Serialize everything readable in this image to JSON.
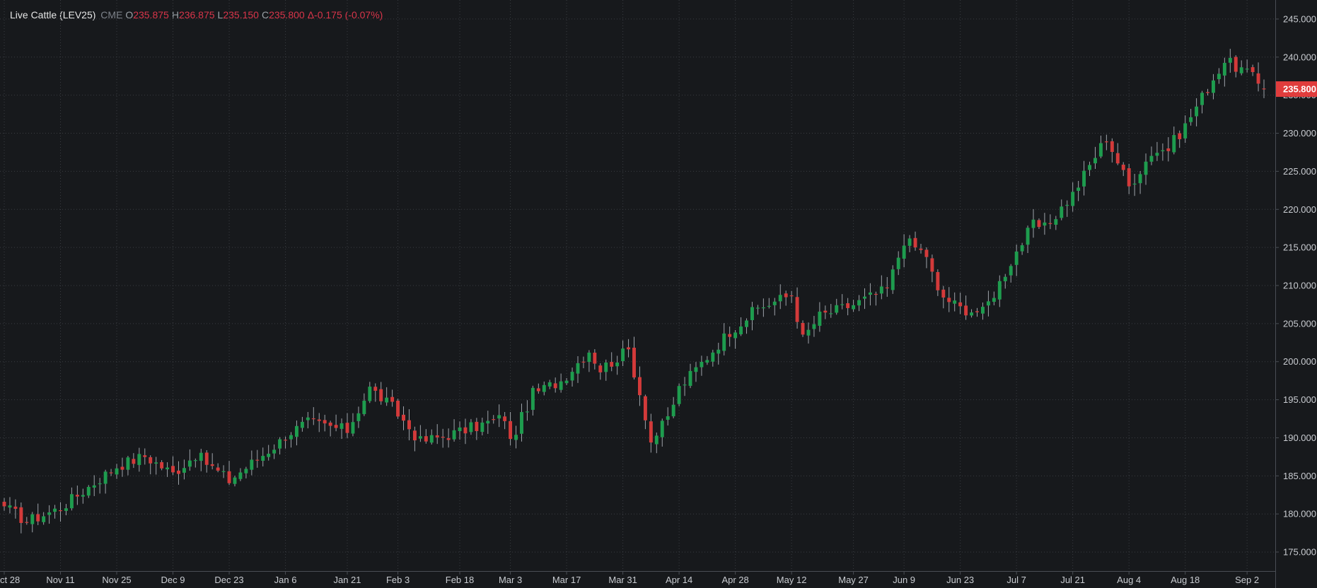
{
  "legend": {
    "symbol": "Live Cattle (LEV25)",
    "exchange": "CME",
    "open_key": "O",
    "open": "235.875",
    "high_key": "H",
    "high": "236.875",
    "low_key": "L",
    "low": "235.150",
    "close_key": "C",
    "close": "235.800",
    "change": "Δ-0.175 (-0.07%)"
  },
  "colors": {
    "background": "#17191c",
    "up": "#1e9c4e",
    "down": "#d33a3a",
    "grid": "#3a3d42",
    "last_price_bg": "#e03c3c"
  },
  "chart_data": {
    "type": "candlestick",
    "grid": true,
    "y_axis": {
      "position": "right",
      "range": [
        172.5,
        247.5
      ],
      "ticks": [
        "175.000",
        "180.000",
        "185.000",
        "190.000",
        "195.000",
        "200.000",
        "205.000",
        "210.000",
        "215.000",
        "220.000",
        "225.000",
        "230.000",
        "235.000",
        "240.000",
        "245.000"
      ]
    },
    "x_axis": {
      "labels": [
        "ct 28",
        "Nov 11",
        "Nov 25",
        "Dec 9",
        "Dec 23",
        "Jan 6",
        "Jan 21",
        "Feb 3",
        "Feb 18",
        "Mar 3",
        "Mar 17",
        "Mar 31",
        "Apr 14",
        "Apr 28",
        "May 12",
        "May 27",
        "Jun 9",
        "Jun 23",
        "Jul 7",
        "Jul 21",
        "Aug 4",
        "Aug 18",
        "Sep 2"
      ]
    },
    "last_price": "235.800",
    "anchors": [
      {
        "d": "Oct 28",
        "c": 181.0
      },
      {
        "d": "Nov 1",
        "c": 179.0
      },
      {
        "d": "Nov 11",
        "c": 180.8
      },
      {
        "d": "Nov 25",
        "c": 186.3
      },
      {
        "d": "Dec 2",
        "c": 187.6
      },
      {
        "d": "Dec 9",
        "c": 185.3
      },
      {
        "d": "Dec 13",
        "c": 187.8
      },
      {
        "d": "Dec 23",
        "c": 184.4
      },
      {
        "d": "Jan 3",
        "c": 189.5
      },
      {
        "d": "Jan 6",
        "c": 190.4
      },
      {
        "d": "Jan 10",
        "c": 192.0
      },
      {
        "d": "Jan 21",
        "c": 191.0
      },
      {
        "d": "Jan 27",
        "c": 196.5
      },
      {
        "d": "Jan 31",
        "c": 194.0
      },
      {
        "d": "Feb 7",
        "c": 189.5
      },
      {
        "d": "Feb 12",
        "c": 190.0
      },
      {
        "d": "Feb 18",
        "c": 190.8
      },
      {
        "d": "Feb 28",
        "c": 192.7
      },
      {
        "d": "Mar 3",
        "c": 189.4
      },
      {
        "d": "Mar 7",
        "c": 195.8
      },
      {
        "d": "Mar 14",
        "c": 197.5
      },
      {
        "d": "Mar 21",
        "c": 201.5
      },
      {
        "d": "Mar 25",
        "c": 199.0
      },
      {
        "d": "Apr 1",
        "c": 201.5
      },
      {
        "d": "Apr 4",
        "c": 193.0
      },
      {
        "d": "Apr 7",
        "c": 189.5
      },
      {
        "d": "Apr 10",
        "c": 192.5
      },
      {
        "d": "Apr 14",
        "c": 196.5
      },
      {
        "d": "Apr 25",
        "c": 204.0
      },
      {
        "d": "May 2",
        "c": 207.0
      },
      {
        "d": "May 12",
        "c": 208.8
      },
      {
        "d": "May 14",
        "c": 203.0
      },
      {
        "d": "May 19",
        "c": 206.0
      },
      {
        "d": "May 27",
        "c": 207.5
      },
      {
        "d": "Jun 4",
        "c": 209.5
      },
      {
        "d": "Jun 9",
        "c": 216.0
      },
      {
        "d": "Jun 13",
        "c": 214.0
      },
      {
        "d": "Jun 17",
        "c": 209.0
      },
      {
        "d": "Jun 23",
        "c": 207.0
      },
      {
        "d": "Jun 27",
        "c": 206.5
      },
      {
        "d": "Jul 1",
        "c": 209.0
      },
      {
        "d": "Jul 7",
        "c": 214.5
      },
      {
        "d": "Jul 10",
        "c": 218.0
      },
      {
        "d": "Jul 14",
        "c": 217.5
      },
      {
        "d": "Jul 21",
        "c": 222.0
      },
      {
        "d": "Jul 29",
        "c": 229.5
      },
      {
        "d": "Aug 4",
        "c": 223.0
      },
      {
        "d": "Aug 8",
        "c": 227.5
      },
      {
        "d": "Aug 13",
        "c": 228.0
      },
      {
        "d": "Aug 18",
        "c": 231.0
      },
      {
        "d": "Aug 22",
        "c": 236.0
      },
      {
        "d": "Aug 27",
        "c": 239.5
      },
      {
        "d": "Sep 2",
        "c": 238.0
      },
      {
        "d": "Sep 5",
        "c": 235.8
      }
    ]
  }
}
